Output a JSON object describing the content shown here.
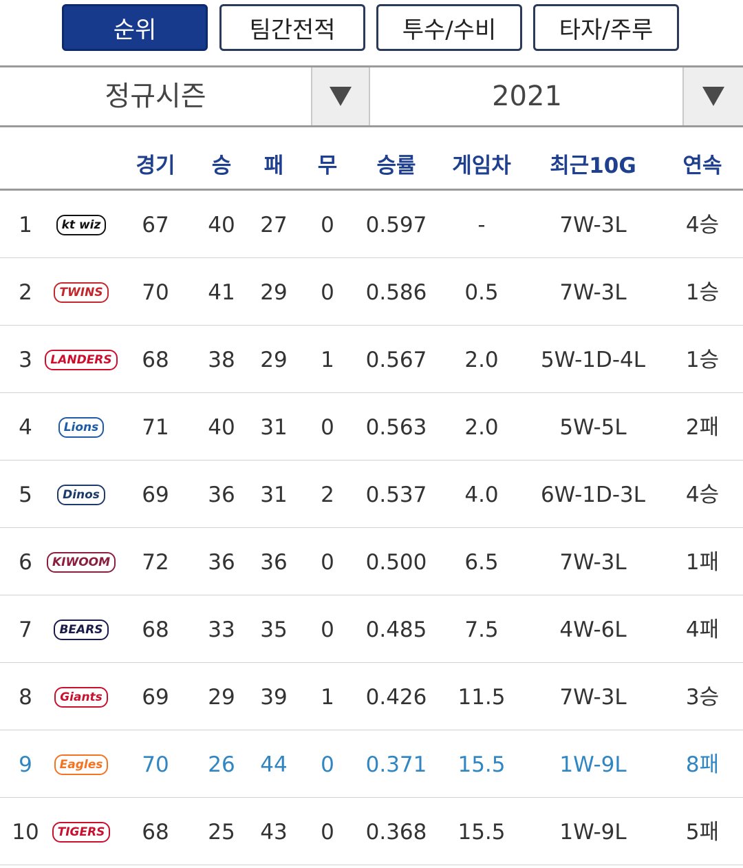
{
  "tabs": [
    {
      "label": "순위",
      "active": true
    },
    {
      "label": "팀간전적",
      "active": false
    },
    {
      "label": "투수/수비",
      "active": false
    },
    {
      "label": "타자/주루",
      "active": false
    }
  ],
  "selectors": {
    "season": "정규시즌",
    "year": "2021",
    "dropdown_icon": "triangle-down-icon"
  },
  "table": {
    "headers": {
      "games": "경기",
      "wins": "승",
      "losses": "패",
      "draws": "무",
      "pct": "승률",
      "gb": "게임차",
      "last10": "최근10G",
      "streak": "연속"
    },
    "highlight_color": "#2f86c2",
    "rows": [
      {
        "rank": "1",
        "logo": "kt wiz",
        "logo_color": "#111111",
        "games": "67",
        "w": "40",
        "l": "27",
        "d": "0",
        "pct": "0.597",
        "gb": "-",
        "last10": "7W-3L",
        "streak": "4승"
      },
      {
        "rank": "2",
        "logo": "TWINS",
        "logo_color": "#c1272d",
        "games": "70",
        "w": "41",
        "l": "29",
        "d": "0",
        "pct": "0.586",
        "gb": "0.5",
        "last10": "7W-3L",
        "streak": "1승"
      },
      {
        "rank": "3",
        "logo": "LANDERS",
        "logo_color": "#ce0e2d",
        "games": "68",
        "w": "38",
        "l": "29",
        "d": "1",
        "pct": "0.567",
        "gb": "2.0",
        "last10": "5W-1D-4L",
        "streak": "1승"
      },
      {
        "rank": "4",
        "logo": "Lions",
        "logo_color": "#1d5aa8",
        "games": "71",
        "w": "40",
        "l": "31",
        "d": "0",
        "pct": "0.563",
        "gb": "2.0",
        "last10": "5W-5L",
        "streak": "2패"
      },
      {
        "rank": "5",
        "logo": "Dinos",
        "logo_color": "#1d3a6b",
        "games": "69",
        "w": "36",
        "l": "31",
        "d": "2",
        "pct": "0.537",
        "gb": "4.0",
        "last10": "6W-1D-3L",
        "streak": "4승"
      },
      {
        "rank": "6",
        "logo": "KIWOOM",
        "logo_color": "#8b1e3f",
        "games": "72",
        "w": "36",
        "l": "36",
        "d": "0",
        "pct": "0.500",
        "gb": "6.5",
        "last10": "7W-3L",
        "streak": "1패"
      },
      {
        "rank": "7",
        "logo": "BEARS",
        "logo_color": "#1a1a4a",
        "games": "68",
        "w": "33",
        "l": "35",
        "d": "0",
        "pct": "0.485",
        "gb": "7.5",
        "last10": "4W-6L",
        "streak": "4패"
      },
      {
        "rank": "8",
        "logo": "Giants",
        "logo_color": "#c8102e",
        "games": "69",
        "w": "29",
        "l": "39",
        "d": "1",
        "pct": "0.426",
        "gb": "11.5",
        "last10": "7W-3L",
        "streak": "3승"
      },
      {
        "rank": "9",
        "logo": "Eagles",
        "logo_color": "#f37321",
        "games": "70",
        "w": "26",
        "l": "44",
        "d": "0",
        "pct": "0.371",
        "gb": "15.5",
        "last10": "1W-9L",
        "streak": "8패",
        "highlight": true
      },
      {
        "rank": "10",
        "logo": "TIGERS",
        "logo_color": "#c8102e",
        "games": "68",
        "w": "25",
        "l": "43",
        "d": "0",
        "pct": "0.368",
        "gb": "15.5",
        "last10": "1W-9L",
        "streak": "5패"
      }
    ]
  }
}
